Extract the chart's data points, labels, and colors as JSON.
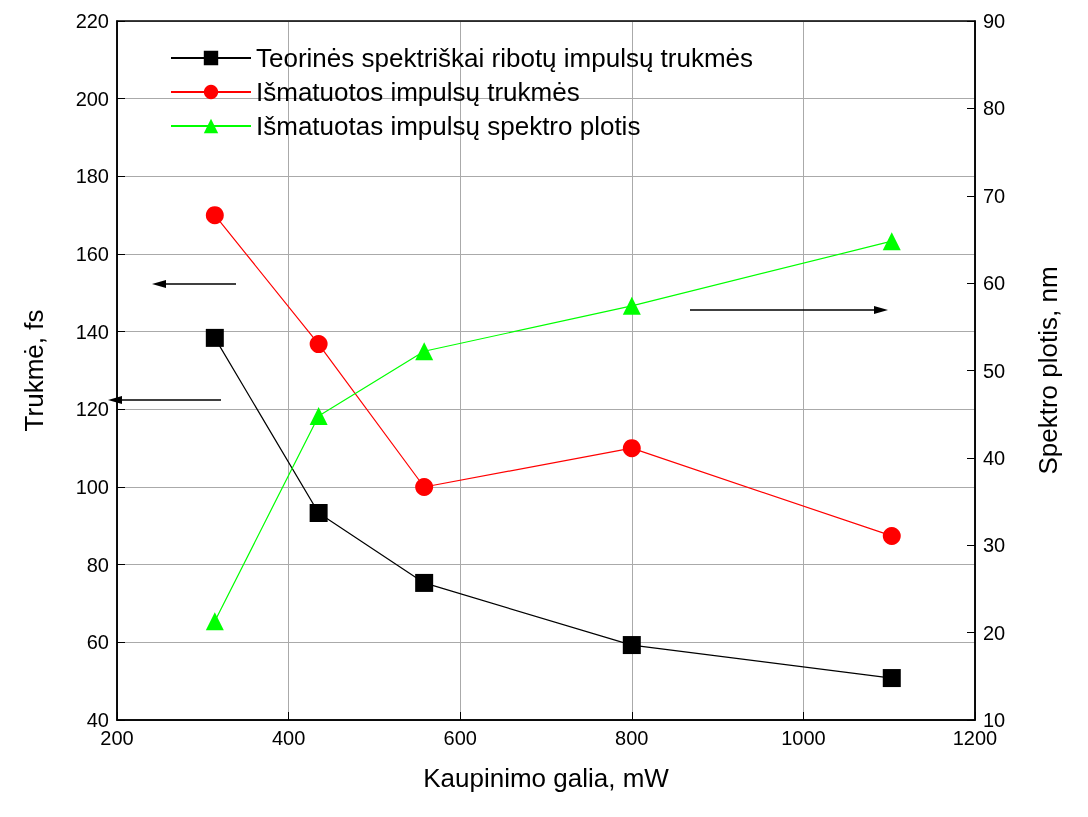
{
  "chart_data": {
    "type": "line",
    "xlabel": "Kaupinimo galia, mW",
    "ylabel": "Trukmė, fs",
    "y2label": "Spektro plotis, nm",
    "x": [
      314,
      435,
      558,
      800,
      1103
    ],
    "series": [
      {
        "name": "Teorinės spektriškai ribotų impulsų trukmės",
        "color": "#000000",
        "marker": "square",
        "values": [
          138.4,
          93.3,
          75.3,
          59.3,
          50.8
        ]
      },
      {
        "name": "Išmatuotos impulsų trukmės",
        "color": "#ff0000",
        "marker": "circle",
        "values": [
          170,
          136.8,
          100,
          110,
          87.4
        ]
      },
      {
        "name": "Išmatuotas impulsų spektro plotis",
        "color": "#00ff00",
        "marker": "triangle",
        "axis": "y2",
        "values": [
          21.3,
          44.8,
          52.2,
          57.4,
          64.8
        ]
      }
    ],
    "xlim": [
      200,
      1200
    ],
    "xticks": [
      200,
      400,
      600,
      800,
      1000,
      1200
    ],
    "ylim": [
      40,
      220
    ],
    "yticks": [
      40,
      60,
      80,
      100,
      120,
      140,
      160,
      180,
      200,
      220
    ],
    "y2lim": [
      10,
      90
    ],
    "y2ticks": [
      10,
      20,
      30,
      40,
      50,
      60,
      70,
      80,
      90
    ],
    "grid": true,
    "legend": "top left",
    "line_style": "solid"
  }
}
